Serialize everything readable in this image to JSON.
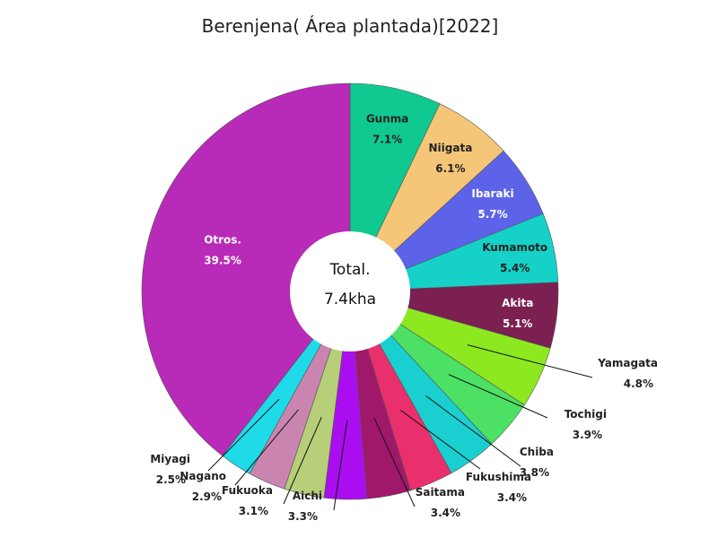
{
  "chart_data": {
    "type": "pie",
    "title": "Berenjena( Área plantada)[2022]",
    "center_label": "Total.",
    "center_value": "7.4kha",
    "slices": [
      {
        "name": "Gunma",
        "percent": 7.1,
        "label": "7.1%",
        "color": "#10c990",
        "placement": "inside",
        "label_color": "#222222"
      },
      {
        "name": "Niigata",
        "percent": 6.1,
        "label": "6.1%",
        "color": "#f5c678",
        "placement": "inside",
        "label_color": "#222222"
      },
      {
        "name": "Ibaraki",
        "percent": 5.7,
        "label": "5.7%",
        "color": "#5d63e8",
        "placement": "inside",
        "label_color": "#ffffff"
      },
      {
        "name": "Kumamoto",
        "percent": 5.4,
        "label": "5.4%",
        "color": "#15d1c8",
        "placement": "inside",
        "label_color": "#222222"
      },
      {
        "name": "Akita",
        "percent": 5.1,
        "label": "5.1%",
        "color": "#7b2050",
        "placement": "inside",
        "label_color": "#ffffff"
      },
      {
        "name": "Yamagata",
        "percent": 4.8,
        "label": "4.8%",
        "color": "#8ee820",
        "placement": "outside",
        "label_color": "#222222"
      },
      {
        "name": "Tochigi",
        "percent": 3.9,
        "label": "3.9%",
        "color": "#4ce065",
        "placement": "outside",
        "label_color": "#222222"
      },
      {
        "name": "Chiba",
        "percent": 3.8,
        "label": "3.8%",
        "color": "#1acfcf",
        "placement": "outside",
        "label_color": "#222222"
      },
      {
        "name": "Fukushima",
        "percent": 3.4,
        "label": "3.4%",
        "color": "#e9306c",
        "placement": "outside",
        "label_color": "#222222"
      },
      {
        "name": "Saitama",
        "percent": 3.4,
        "label": "3.4%",
        "color": "#a0186a",
        "placement": "outside",
        "label_color": "#222222"
      },
      {
        "name": "Aichi",
        "percent": 3.3,
        "label": "3.3%",
        "color": "#aa0ef0",
        "placement": "outside",
        "label_color": "#222222"
      },
      {
        "name": "Fukuoka",
        "percent": 3.1,
        "label": "3.1%",
        "color": "#b6cf78",
        "placement": "outside",
        "label_color": "#222222"
      },
      {
        "name": "Nagano",
        "percent": 2.9,
        "label": "2.9%",
        "color": "#c985b0",
        "placement": "outside",
        "label_color": "#222222"
      },
      {
        "name": "Miyagi",
        "percent": 2.5,
        "label": "2.5%",
        "color": "#1fdae8",
        "placement": "outside",
        "label_color": "#222222"
      },
      {
        "name": "Otros.",
        "percent": 39.5,
        "label": "39.5%",
        "color": "#b82ab8",
        "placement": "inside",
        "label_color": "#ffffff"
      }
    ]
  }
}
